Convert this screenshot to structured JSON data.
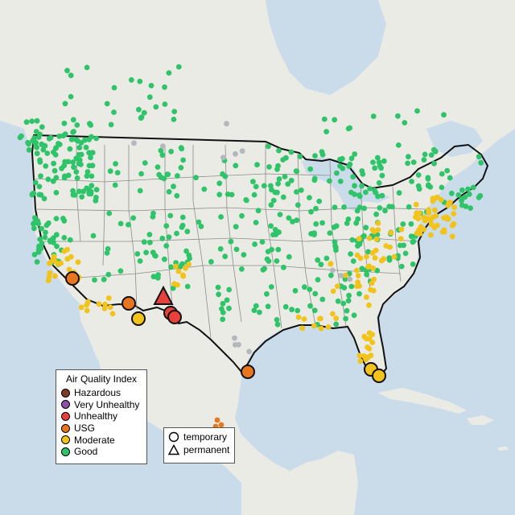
{
  "legend": {
    "title": "Air Quality Index",
    "categories": [
      {
        "label": "Hazardous",
        "color": "#7e3b2a"
      },
      {
        "label": "Very Unhealthy",
        "color": "#8e4fa6"
      },
      {
        "label": "Unhealthy",
        "color": "#e8413c"
      },
      {
        "label": "USG",
        "color": "#e8761f"
      },
      {
        "label": "Moderate",
        "color": "#f2c31a"
      },
      {
        "label": "Good",
        "color": "#2fc46a"
      }
    ],
    "monitor_types": [
      {
        "label": "temporary",
        "icon": "circle-outline-icon"
      },
      {
        "label": "permanent",
        "icon": "triangle-outline-icon"
      }
    ]
  },
  "colors": {
    "water": "#cadbea",
    "land": "#ebebe6",
    "state_border": "#8c8c8c",
    "country_border": "#111111",
    "no_data": "#b4b8be"
  }
}
